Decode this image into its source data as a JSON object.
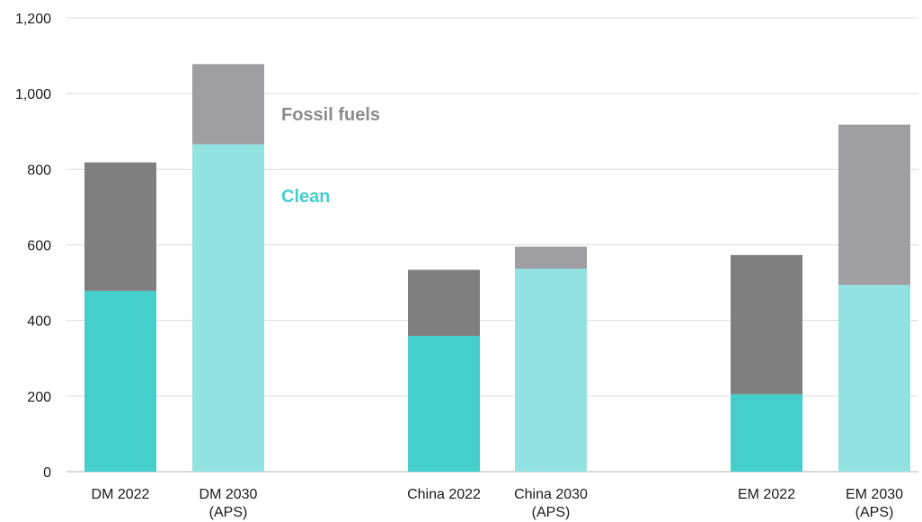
{
  "chart_data": {
    "type": "bar",
    "stacked": true,
    "categories": [
      {
        "line1": "DM 2022",
        "line2": ""
      },
      {
        "line1": "DM 2030",
        "line2": "(APS)"
      },
      {
        "line1": "China 2022",
        "line2": ""
      },
      {
        "line1": "China 2030",
        "line2": "(APS)"
      },
      {
        "line1": "EM 2022",
        "line2": ""
      },
      {
        "line1": "EM 2030",
        "line2": "(APS)"
      }
    ],
    "series": [
      {
        "name": "Clean",
        "values": [
          478,
          866,
          359,
          537,
          205,
          494
        ],
        "colors": [
          "#45cfcc",
          "#92e2e1",
          "#45cfcc",
          "#92e2e1",
          "#45cfcc",
          "#92e2e1"
        ],
        "label_color": "#45cfcc"
      },
      {
        "name": "Fossil fuels",
        "values": [
          340,
          212,
          175,
          58,
          368,
          424
        ],
        "colors": [
          "#7f7f7f",
          "#9f9ea3",
          "#7f7f7f",
          "#9f9ea3",
          "#7f7f7f",
          "#9f9ea3"
        ],
        "label_color": "#8c8c8c"
      }
    ],
    "ylim": [
      0,
      1200
    ],
    "yticks": [
      "0",
      "200",
      "400",
      "600",
      "800",
      "1,000",
      "1,200"
    ],
    "ytick_values": [
      0,
      200,
      400,
      600,
      800,
      1000,
      1200
    ],
    "grid": true,
    "legend": "inline, beside DM 2030 bar",
    "title": "",
    "xlabel": "",
    "ylabel": ""
  }
}
